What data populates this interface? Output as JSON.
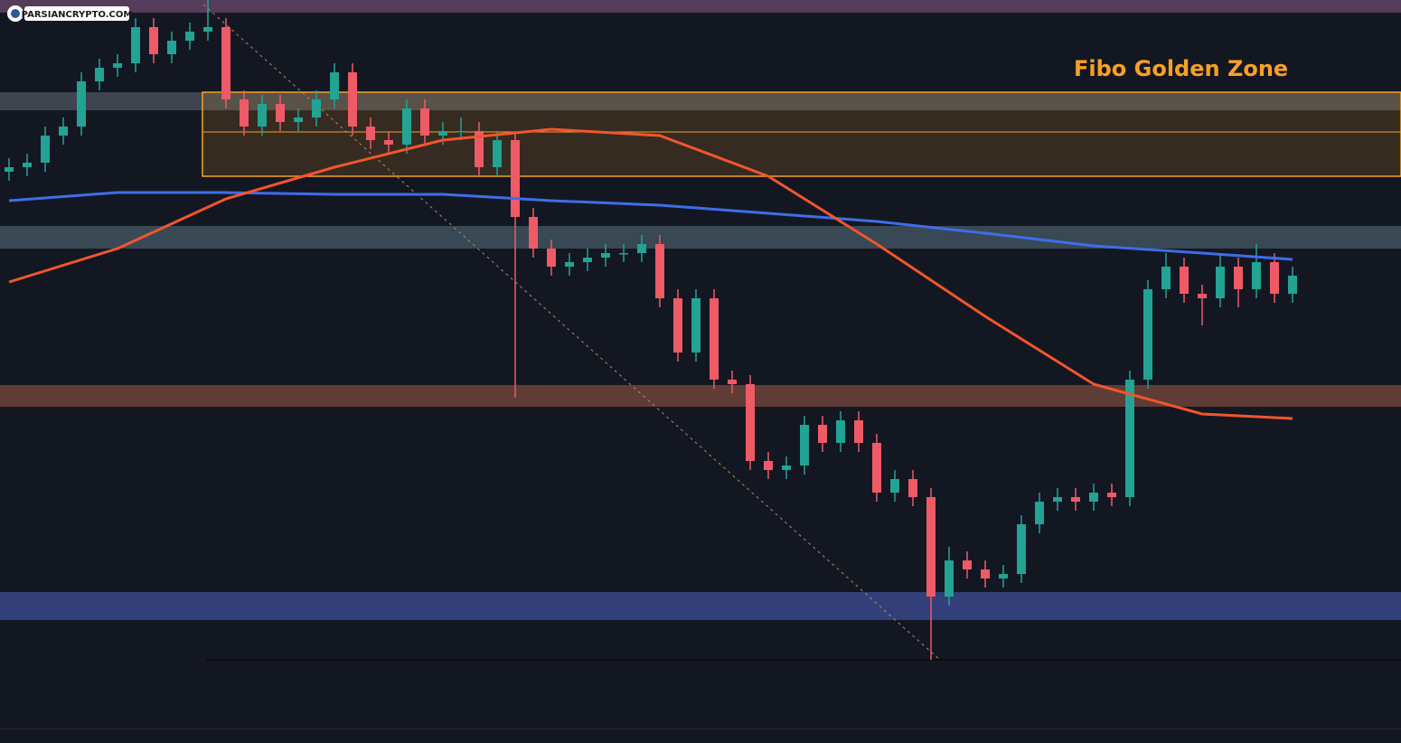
{
  "chart_data": {
    "type": "candlestick",
    "watermark": "PARSIANCRYPTO.COM",
    "annotation": "Fibo Golden Zone",
    "ylim": [
      0,
      82
    ],
    "up_color": "#22a393",
    "down_color": "#ee5a66",
    "open": [
      63,
      63.5,
      64,
      67,
      68,
      73,
      74.5,
      75,
      79,
      76,
      77.5,
      78.5,
      79,
      71,
      68,
      70.5,
      68.5,
      69,
      71,
      74,
      68,
      66.5,
      66,
      70,
      67,
      67.5,
      67.5,
      63.5,
      66.5,
      58,
      54.5,
      52.5,
      53,
      53.5,
      54,
      54,
      55,
      49,
      43,
      49,
      40,
      39.5,
      31,
      30,
      30.5,
      35,
      33,
      35.5,
      33,
      27.5,
      29,
      27,
      16,
      20,
      19,
      18,
      18.5,
      24,
      26.5,
      27,
      26.5,
      27.5,
      27,
      40,
      50,
      52.5,
      49.5,
      49,
      52.5,
      50,
      53,
      49.5
    ],
    "close": [
      63.5,
      64,
      67,
      68,
      73,
      74.5,
      75,
      79,
      76,
      77.5,
      78.5,
      79,
      71,
      68,
      70.5,
      68.5,
      69,
      71,
      74,
      68,
      66.5,
      66,
      70,
      67,
      67.5,
      67.5,
      63.5,
      66.5,
      58,
      54.5,
      52.5,
      53,
      53.5,
      54,
      54,
      55,
      49,
      43,
      49,
      40,
      39.5,
      31,
      30,
      30.5,
      35,
      33,
      35.5,
      33,
      27.5,
      29,
      27,
      16,
      20,
      19,
      18,
      18.5,
      24,
      26.5,
      27,
      26.5,
      27.5,
      27,
      40,
      50,
      52.5,
      49.5,
      49,
      52.5,
      50,
      53,
      49.5,
      51.5
    ],
    "high": [
      64.5,
      65,
      68,
      69,
      74,
      75.5,
      76,
      80,
      80,
      78.5,
      79.5,
      82,
      80,
      72,
      71.5,
      71.5,
      70,
      72,
      75,
      75,
      69,
      67.5,
      71,
      71,
      68.5,
      69,
      68.5,
      67.5,
      67.5,
      59,
      55.5,
      54,
      54.5,
      55,
      55,
      56,
      56,
      50,
      50,
      50,
      41,
      40.5,
      32,
      31.5,
      36,
      36,
      36.5,
      36.5,
      34,
      30,
      30,
      28,
      21.5,
      21,
      20,
      19.5,
      25,
      27.5,
      28,
      28,
      28.5,
      28.5,
      41,
      51,
      54,
      53.5,
      50.5,
      54,
      53.5,
      55,
      54,
      52.5
    ],
    "low": [
      62,
      62.5,
      63,
      66,
      67,
      72,
      73.5,
      74,
      75,
      75,
      76.5,
      77.5,
      70,
      67,
      67,
      67.5,
      67.5,
      68,
      70,
      67,
      65.5,
      65,
      65,
      66,
      66,
      66.5,
      62.5,
      62.5,
      38,
      53.5,
      51.5,
      51.5,
      52,
      52.5,
      53,
      53,
      48,
      42,
      42,
      39,
      38.5,
      30,
      29,
      29,
      29.5,
      32,
      32,
      32,
      26.5,
      26.5,
      26,
      9,
      15,
      18,
      17,
      17,
      17.5,
      23,
      25.5,
      25.5,
      25.5,
      26,
      26,
      39,
      49,
      48.5,
      46,
      48,
      48,
      49,
      48.5,
      48.5
    ],
    "moving_averages": [
      {
        "color": "#3d6ee8",
        "x": [
          0,
          6,
          12,
          18,
          24,
          30,
          36,
          42,
          48,
          54,
          60,
          66,
          71
        ],
        "values": [
          59.8,
          60.7,
          60.7,
          60.5,
          60.5,
          59.8,
          59.3,
          58.4,
          57.5,
          56.2,
          54.8,
          54,
          53.3
        ]
      },
      {
        "color": "#f2552c",
        "x": [
          0,
          6,
          12,
          18,
          24,
          30,
          36,
          42,
          48,
          54,
          60,
          66,
          71
        ],
        "values": [
          50.8,
          54.5,
          60,
          63.5,
          66.5,
          67.7,
          67,
          62.5,
          55,
          47,
          39.5,
          36.2,
          35.7
        ]
      }
    ],
    "zones": [
      {
        "from": 80.6,
        "to": 82,
        "color": "#6b4a6e"
      },
      {
        "from": 69.8,
        "to": 71.8,
        "color": "#4d5560"
      },
      {
        "from": 54.5,
        "to": 57,
        "color": "#465a66"
      },
      {
        "from": 37,
        "to": 39.4,
        "color": "#7a4a3c"
      },
      {
        "from": 13.4,
        "to": 16.5,
        "color": "#3f4e95"
      }
    ],
    "fibo_box": {
      "start": 10.7,
      "from": 62.5,
      "to": 71.8,
      "mid": 67.4,
      "color": "#f7a024"
    },
    "trendline": {
      "x": [
        10.75,
        51.5
      ],
      "values": [
        81.5,
        9
      ],
      "color": "#b48a5a"
    },
    "base_line": {
      "start": 10.9,
      "value": 9
    }
  }
}
